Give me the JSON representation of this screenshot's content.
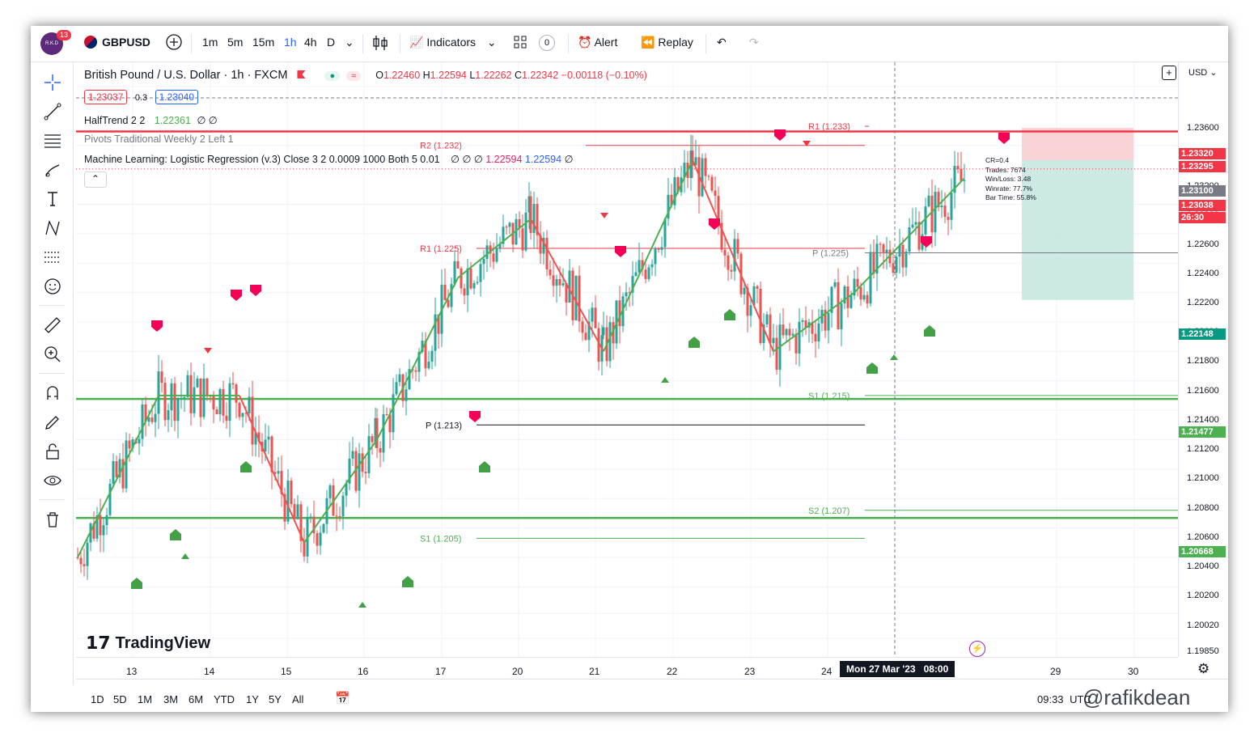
{
  "toolbar": {
    "notifications": "13",
    "avatar_text": "R.K.D",
    "symbol": "GBPUSD",
    "intervals": [
      "1m",
      "5m",
      "15m",
      "1h",
      "4h",
      "D"
    ],
    "active_interval": "1h",
    "indicators_label": "Indicators",
    "indicators_count": "0",
    "alert_label": "Alert",
    "replay_label": "Replay"
  },
  "legend": {
    "title": "British Pound / U.S. Dollar · 1h · FXCM",
    "ohlc": {
      "o": "1.22460",
      "h": "1.22594",
      "l": "1.22262",
      "c": "1.22342",
      "change": "−0.00118 (−0.10%)"
    },
    "bid": "1.23037",
    "spread": "0.3",
    "ask": "1.23040",
    "halftrend": {
      "name": "HalfTrend 2 2",
      "value": "1.22361",
      "extra": "∅ ∅"
    },
    "pivots": "Pivots Traditional Weekly 2 Left 1",
    "ml": {
      "name": "Machine Learning: Logistic Regression (v.3) Close 3 2 0.0009 1000 Both 5 0.01",
      "empty": "∅ ∅ ∅",
      "v1": "1.22594",
      "v2": "1.22594",
      "tail": "∅"
    }
  },
  "axis": {
    "currency": "USD",
    "ticks": [
      "1.23600",
      "1.23200",
      "1.22800",
      "1.22600",
      "1.22400",
      "1.22200",
      "1.22000",
      "1.21800",
      "1.21600",
      "1.21400",
      "1.21200",
      "1.21000",
      "1.20800",
      "1.20600",
      "1.20400",
      "1.20200",
      "1.20020",
      "1.19850"
    ],
    "labels": [
      {
        "text": "1.23320",
        "color": "#f23645"
      },
      {
        "text": "1.23295",
        "color": "#f23645"
      },
      {
        "text": "1.23100",
        "color": "#787b86"
      },
      {
        "text": "1.23038",
        "color": "#f23645"
      },
      {
        "text": "26:30",
        "color": "#f23645"
      },
      {
        "text": "1.22148",
        "color": "#089981"
      },
      {
        "text": "1.21477",
        "color": "#4caf50"
      },
      {
        "text": "1.20668",
        "color": "#4caf50"
      }
    ]
  },
  "pivot_labels": [
    "R2 (1.232)",
    "R1 (1.233)",
    "R1 (1.225)",
    "P (1.225)",
    "S1 (1.215)",
    "P (1.213)",
    "S2 (1.207)",
    "S1 (1.205)"
  ],
  "stats": [
    "CR=0.4",
    "Trades: 7674",
    "Win/Loss: 3.48",
    "Winrate: 77.7%",
    "Bar Time: 55.8%"
  ],
  "time_axis": {
    "ticks": [
      "13",
      "14",
      "15",
      "16",
      "17",
      "20",
      "21",
      "22",
      "23",
      "24",
      "29",
      "30"
    ],
    "crosshair": "Mon 27 Mar '23",
    "crosshair_time": "08:00"
  },
  "bottom": {
    "ranges": [
      "1D",
      "5D",
      "1M",
      "3M",
      "6M",
      "YTD",
      "1Y",
      "5Y",
      "All"
    ],
    "clock": "09:33",
    "tz": "UTC",
    "watermark_text": "@rafikdean"
  },
  "watermark": "TradingView",
  "chart_data": {
    "type": "line",
    "title": "",
    "series": [
      {
        "name": "HalfTrend 2 2",
        "x": [
          "13",
          "14",
          "15",
          "16",
          "17",
          "20",
          "21",
          "22",
          "23",
          "24",
          "27",
          "28"
        ],
        "values": [
          1.204,
          1.215,
          1.215,
          1.205,
          1.212,
          1.223,
          1.227,
          1.218,
          1.231,
          1.218,
          1.222,
          1.23
        ]
      }
    ],
    "ylim": [
      1.1985,
      1.236
    ],
    "horizontal_lines": [
      {
        "label": "1.23295",
        "value": 1.23295,
        "color": "#f23645"
      },
      {
        "label": "1.21477",
        "value": 1.21477,
        "color": "#4caf50"
      },
      {
        "label": "1.20668",
        "value": 1.20668,
        "color": "#4caf50"
      }
    ]
  }
}
